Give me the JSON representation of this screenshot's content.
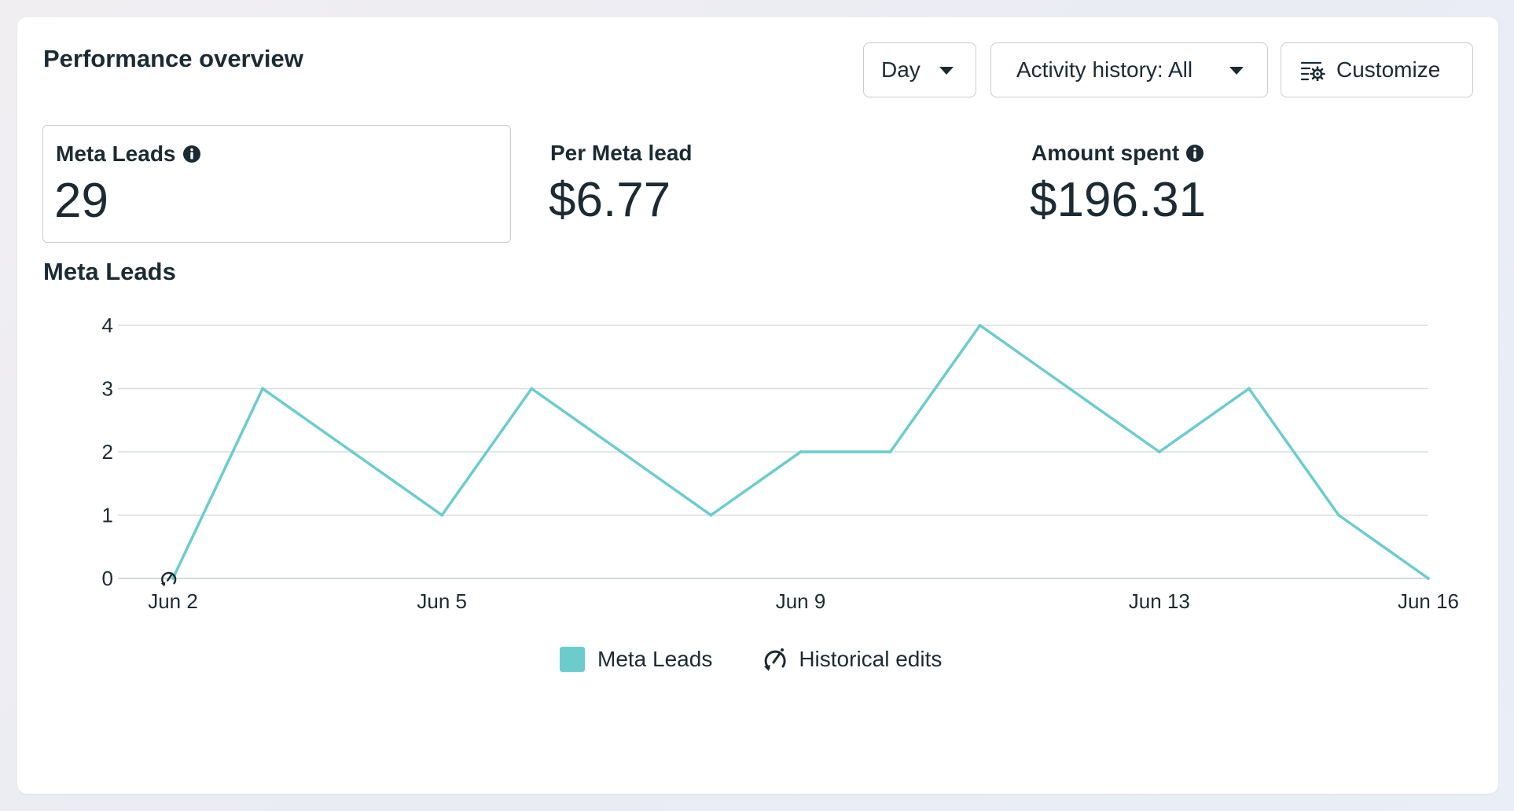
{
  "header": {
    "title": "Performance overview",
    "day_label": "Day",
    "activity_label": "Activity history: All",
    "customize_label": "Customize"
  },
  "metrics": [
    {
      "label": "Meta Leads",
      "value": "29",
      "info": true,
      "selected": true
    },
    {
      "label": "Per Meta lead",
      "value": "$6.77",
      "info": false,
      "selected": false
    },
    {
      "label": "Amount spent",
      "value": "$196.31",
      "info": true,
      "selected": false
    }
  ],
  "chart_section": {
    "title": "Meta Leads"
  },
  "colors": {
    "series": "#6ccccc",
    "text": "#1c2b33",
    "grid": "#d9dde0",
    "border": "#c7cdd2"
  },
  "chart_data": {
    "type": "line",
    "title": "Meta Leads",
    "x": [
      "Jun 2",
      "Jun 3",
      "Jun 4",
      "Jun 5",
      "Jun 6",
      "Jun 7",
      "Jun 8",
      "Jun 9",
      "Jun 10",
      "Jun 11",
      "Jun 12",
      "Jun 13",
      "Jun 14",
      "Jun 15",
      "Jun 16"
    ],
    "series": [
      {
        "name": "Meta Leads",
        "values": [
          0,
          3,
          2,
          1,
          3,
          2,
          1,
          2,
          2,
          4,
          3,
          2,
          3,
          1,
          0
        ]
      }
    ],
    "x_tick_labels": [
      "Jun 2",
      "Jun 5",
      "Jun 9",
      "Jun 13",
      "Jun 16"
    ],
    "y_ticks": [
      0,
      1,
      2,
      3,
      4
    ],
    "ylim": [
      0,
      4
    ],
    "grid": true,
    "historical_edits_at": [
      "Jun 2"
    ],
    "legend": [
      {
        "name": "Meta Leads",
        "kind": "swatch"
      },
      {
        "name": "Historical edits",
        "kind": "icon"
      }
    ],
    "legend_position": "bottom-center"
  }
}
